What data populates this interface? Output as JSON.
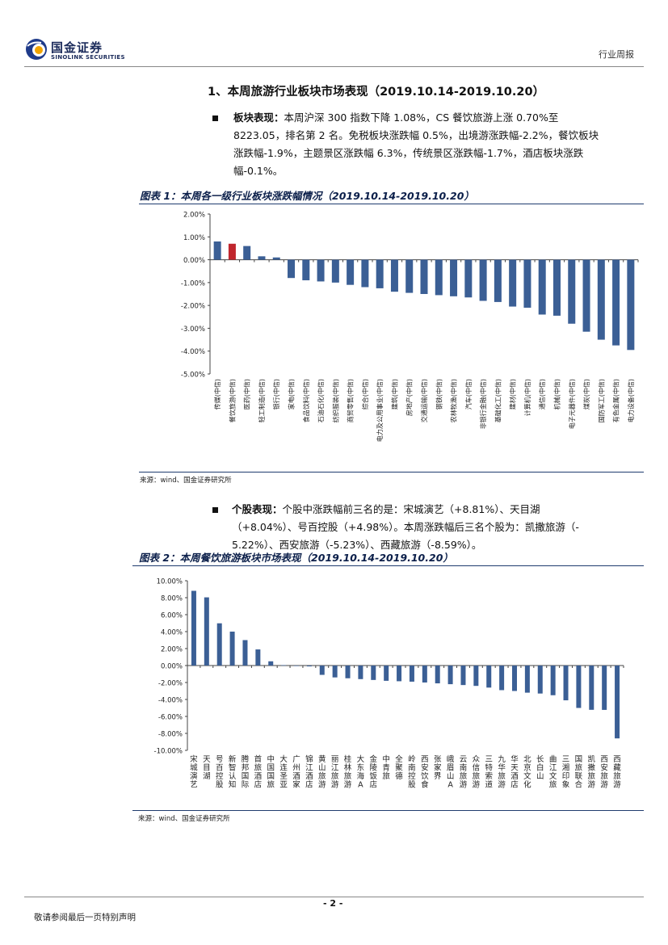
{
  "header": {
    "logo_cn": "国金证券",
    "logo_en": "SINOLINK SECURITIES",
    "report_type": "行业周报"
  },
  "section": {
    "heading": "1、本周旅游行业板块市场表现（2019.10.14-2019.10.20）",
    "para1_label": "板块表现：",
    "para1_lines": [
      "本周沪深 300 指数下降 1.08%，CS 餐饮旅游上涨 0.70%至",
      "8223.05，排名第 2 名。免税板块涨跌幅 0.5%，出境游涨跌幅-2.2%，餐饮板块",
      "涨跌幅-1.9%，主题景区涨跌幅 6.3%，传统景区涨跌幅-1.7%，酒店板块涨跌",
      "幅-0.1%。"
    ],
    "para2_label": "个股表现：",
    "para2_lines": [
      "个股中涨跌幅前三名的是：宋城演艺（+8.81%）、天目湖",
      "（+8.04%）、号百控股（+4.98%）。本周涨跌幅后三名个股为：凯撒旅游（-",
      "5.22%）、西安旅游（-5.23%）、西藏旅游（-8.59%）。"
    ]
  },
  "figure1": {
    "title": "图表 1：本周各一级行业板块涨跌幅情况（2019.10.14-2019.10.20）",
    "source": "来源：wind、国金证券研究所"
  },
  "figure2": {
    "title": "图表 2：本周餐饮旅游板块市场表现（2019.10.14-2019.10.20）",
    "source": "来源：wind、国金证券研究所"
  },
  "footer": {
    "page": "- 2 -",
    "disclaimer": "敬请参阅最后一页特别声明"
  },
  "colors": {
    "bar": "#3b5f95",
    "highlight": "#c0262d",
    "navy": "#1f3b6e"
  },
  "chart_data": [
    {
      "type": "bar",
      "ylim": [
        -5,
        2
      ],
      "yticks": [
        "2.00%",
        "1.00%",
        "0.00%",
        "-1.00%",
        "-2.00%",
        "-3.00%",
        "-4.00%",
        "-5.00%"
      ],
      "categories": [
        "传媒(中信)",
        "餐饮旅游(中信)",
        "医药(中信)",
        "轻工制造(中信)",
        "银行(中信)",
        "家电(中信)",
        "食品饮料(中信)",
        "石油石化(中信)",
        "纺织服装(中信)",
        "商贸零售(中信)",
        "综合(中信)",
        "电力及公用事业(中信)",
        "建筑(中信)",
        "房地产(中信)",
        "交通运输(中信)",
        "钢铁(中信)",
        "农林牧渔(中信)",
        "汽车(中信)",
        "非银行金融(中信)",
        "基础化工(中信)",
        "建材(中信)",
        "计算机(中信)",
        "通信(中信)",
        "机械(中信)",
        "电子元器件(中信)",
        "煤炭(中信)",
        "国防军工(中信)",
        "有色金属(中信)",
        "电力设备(中信)"
      ],
      "values": [
        0.8,
        0.7,
        0.6,
        0.15,
        0.1,
        -0.8,
        -0.9,
        -0.95,
        -1.0,
        -1.1,
        -1.2,
        -1.25,
        -1.4,
        -1.45,
        -1.5,
        -1.55,
        -1.6,
        -1.65,
        -1.8,
        -1.85,
        -2.05,
        -2.1,
        -2.4,
        -2.45,
        -2.8,
        -3.15,
        -3.5,
        -3.75,
        -3.95
      ],
      "highlight_index": 1
    },
    {
      "type": "bar",
      "ylim": [
        -10,
        10
      ],
      "yticks": [
        "10.00%",
        "8.00%",
        "6.00%",
        "4.00%",
        "2.00%",
        "0.00%",
        "-2.00%",
        "-4.00%",
        "-6.00%",
        "-8.00%",
        "-10.00%"
      ],
      "categories": [
        "宋城演艺",
        "天目湖",
        "号百控股",
        "新智认知",
        "腾邦国际",
        "首旅酒店",
        "中国国旅",
        "大连圣亚",
        "广州酒家",
        "锦江酒店",
        "黄山旅游",
        "丽江旅游",
        "桂林旅游",
        "大东海A",
        "金陵饭店",
        "中青旅",
        "全聚德",
        "岭南控股",
        "西安饮食",
        "张家界",
        "峨眉山A",
        "云南旅游",
        "众信旅游",
        "三特索道",
        "九华旅游",
        "华天酒店",
        "北京文化",
        "长白山",
        "曲江文旅",
        "三湘印象",
        "国旅联合",
        "凯撒旅游",
        "西安旅游",
        "西藏旅游"
      ],
      "values": [
        8.81,
        8.04,
        4.98,
        4.0,
        3.0,
        1.9,
        0.5,
        0.05,
        0.0,
        -0.1,
        -1.1,
        -1.4,
        -1.5,
        -1.6,
        -1.7,
        -1.8,
        -1.85,
        -1.9,
        -2.0,
        -2.1,
        -2.2,
        -2.3,
        -2.4,
        -2.6,
        -2.9,
        -3.0,
        -3.2,
        -3.3,
        -3.5,
        -4.1,
        -5.0,
        -5.22,
        -5.23,
        -8.59
      ]
    }
  ]
}
